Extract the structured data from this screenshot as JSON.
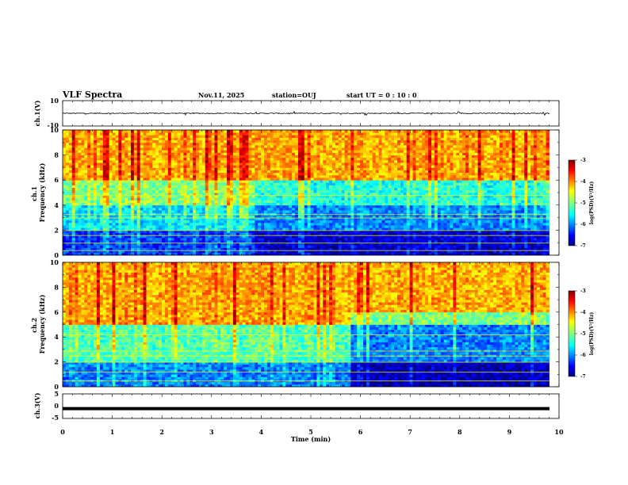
{
  "header": {
    "title": "VLF Spectra",
    "date": "Nov.11, 2025",
    "station": "station=OUJ",
    "start": "start  UT =   0  : 10 : 0"
  },
  "chart_data": [
    {
      "type": "line",
      "panel": "ch1-waveform",
      "ylabel": "ch.1(V)",
      "ylim": [
        -10,
        10
      ],
      "yticks": [
        "10",
        "-10"
      ],
      "xlim": [
        0,
        10
      ],
      "series": [
        {
          "values_summary": "noisy waveform centered at 0 V, amplitude ~±1 V with sferic spikes up to ±3 V"
        }
      ]
    },
    {
      "type": "heatmap",
      "panel": "ch1-spectrogram",
      "ylabel": "ch.1\nFrequency  (kHz)",
      "ylim": [
        0,
        10
      ],
      "yticks": [
        "0",
        "2",
        "4",
        "6",
        "8",
        "10"
      ],
      "xlim": [
        0,
        9.8
      ],
      "colorbar": {
        "label": "log(PSD)(V²/Hz)",
        "min": -7,
        "max": -3,
        "ticks": [
          "-3",
          "-4",
          "-5",
          "-6",
          "-7"
        ]
      },
      "bands_khz": [
        {
          "from": 0,
          "to": 2,
          "level": -6.3
        },
        {
          "from": 2,
          "to": 4,
          "level": -5.6
        },
        {
          "from": 4,
          "to": 6,
          "level": -5.0
        },
        {
          "from": 6,
          "to": 10,
          "level": -4.2
        }
      ],
      "change_time_min": 3.9
    },
    {
      "type": "heatmap",
      "panel": "ch2-spectrogram",
      "ylabel": "ch.2\nFrequency  (kHz)",
      "ylim": [
        0,
        10
      ],
      "yticks": [
        "0",
        "2",
        "4",
        "6",
        "8",
        "10"
      ],
      "xlim": [
        0,
        9.8
      ],
      "colorbar": {
        "label": "log(PSD)(V²/Hz)",
        "min": -7,
        "max": -3,
        "ticks": [
          "-3",
          "-4",
          "-5",
          "-6",
          "-7"
        ]
      },
      "bands_khz": [
        {
          "from": 0,
          "to": 2,
          "level": -6.0
        },
        {
          "from": 2,
          "to": 5,
          "level": -5.2
        },
        {
          "from": 5,
          "to": 10,
          "level": -4.2
        }
      ],
      "change_time_min": 5.8
    },
    {
      "type": "line",
      "panel": "ch3-waveform",
      "ylabel": "ch.3(V)",
      "ylim": [
        -5,
        5
      ],
      "yticks": [
        "5",
        "0",
        "-5"
      ],
      "xlim": [
        0,
        10
      ],
      "xlabel": "Time  (min)",
      "xticks": [
        "0",
        "1",
        "2",
        "3",
        "4",
        "5",
        "6",
        "7",
        "8",
        "9",
        "10"
      ],
      "series": [
        {
          "values_summary": "flat line at -1 V"
        }
      ]
    }
  ],
  "colors": {
    "colormap": [
      "#00007f",
      "#0000ff",
      "#007fff",
      "#00ffff",
      "#7fff7f",
      "#ffff00",
      "#ff7f00",
      "#ff0000",
      "#7f0000"
    ],
    "trace": "#000000",
    "frame": "#000000"
  }
}
